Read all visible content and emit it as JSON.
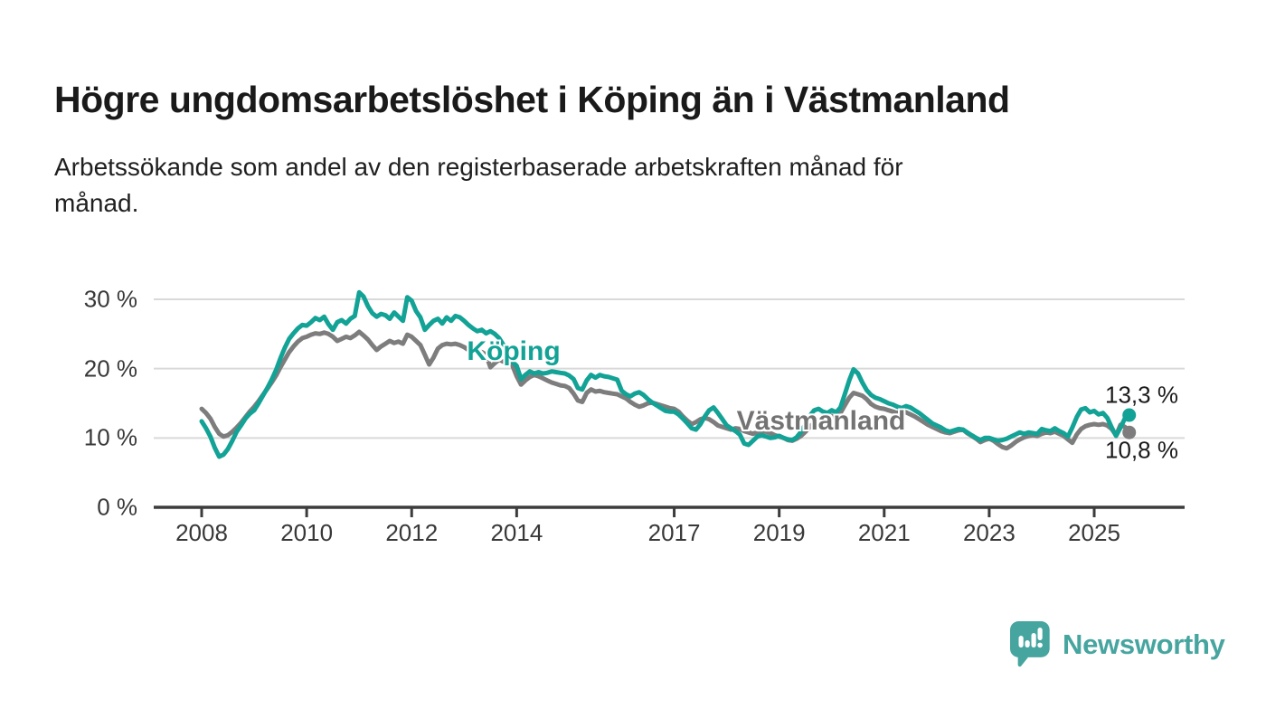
{
  "header": {
    "title": "Högre ungdomsarbetslöshet i Köping än i Västmanland",
    "subtitle_lines": [
      "Arbetssökande som andel av den registerbaserade arbetskraften månad för",
      "månad."
    ]
  },
  "chart_data": {
    "type": "line",
    "unit": "%",
    "frequency": "monthly",
    "period_start": "2008-01",
    "period_end": "2025-09",
    "grid": true,
    "legend": "inline-labels",
    "y_axis": {
      "tick_labels": [
        "0 %",
        "10 %",
        "20 %",
        "30 %"
      ],
      "tick_values": [
        0,
        10,
        20,
        30
      ],
      "min": 0,
      "max": 32.5
    },
    "x_axis": {
      "tick_labels": [
        "2008",
        "2010",
        "2012",
        "2014",
        "2017",
        "2019",
        "2021",
        "2023",
        "2025"
      ],
      "tick_years": [
        2008,
        2010,
        2012,
        2014,
        2017,
        2019,
        2021,
        2023,
        2025
      ]
    },
    "series": [
      {
        "name": "Köping",
        "color": "#12a296",
        "end_label": "13,3 %",
        "last_value": 13.3,
        "values": [
          12.4,
          11.4,
          10.2,
          8.6,
          7.3,
          7.6,
          8.4,
          9.6,
          10.9,
          11.8,
          12.8,
          13.5,
          14.0,
          15.0,
          16.1,
          17.2,
          18.4,
          19.8,
          21.5,
          23.0,
          24.3,
          25.1,
          25.8,
          26.3,
          26.2,
          26.7,
          27.3,
          27.0,
          27.5,
          26.4,
          25.6,
          26.7,
          27.0,
          26.5,
          27.2,
          27.6,
          31.0,
          30.4,
          29.0,
          28.0,
          27.5,
          27.9,
          27.7,
          27.2,
          28.1,
          27.5,
          26.9,
          30.3,
          29.8,
          28.3,
          27.4,
          25.6,
          26.3,
          26.9,
          27.2,
          26.5,
          27.4,
          26.9,
          27.6,
          27.4,
          26.9,
          26.3,
          25.8,
          25.4,
          25.6,
          25.1,
          25.4,
          25.0,
          24.4,
          23.4,
          22.2,
          21.0,
          20.4,
          18.5,
          19.1,
          19.6,
          19.3,
          19.5,
          19.3,
          19.4,
          19.6,
          19.5,
          19.4,
          19.3,
          19.0,
          18.5,
          17.2,
          17.0,
          18.3,
          19.1,
          18.7,
          19.1,
          18.9,
          18.8,
          18.6,
          18.4,
          16.8,
          16.3,
          16.0,
          16.4,
          16.6,
          16.2,
          15.6,
          15.1,
          14.7,
          14.3,
          13.9,
          13.8,
          13.8,
          13.4,
          12.8,
          12.1,
          11.4,
          11.2,
          12.0,
          13.1,
          14.0,
          14.4,
          13.6,
          12.7,
          11.8,
          11.4,
          11.0,
          10.5,
          9.2,
          9.0,
          9.6,
          10.2,
          10.4,
          10.2,
          10.0,
          10.1,
          10.3,
          10.0,
          9.8,
          9.7,
          10.1,
          10.9,
          12.0,
          13.2,
          14.0,
          14.2,
          13.8,
          13.6,
          14.0,
          13.7,
          14.4,
          16.3,
          18.3,
          19.9,
          19.3,
          18.0,
          16.9,
          16.2,
          15.8,
          15.6,
          15.3,
          15.0,
          14.8,
          14.5,
          14.3,
          14.6,
          14.4,
          14.0,
          13.6,
          13.1,
          12.6,
          12.1,
          11.8,
          11.5,
          11.1,
          10.9,
          11.1,
          11.3,
          11.2,
          10.8,
          10.4,
          10.0,
          9.7,
          10.0,
          10.0,
          9.8,
          9.6,
          9.7,
          9.9,
          10.2,
          10.5,
          10.8,
          10.6,
          10.8,
          10.7,
          10.6,
          11.3,
          11.1,
          11.0,
          11.4,
          11.0,
          10.7,
          10.2,
          11.5,
          13.0,
          14.1,
          14.3,
          13.7,
          13.9,
          13.4,
          13.6,
          12.9,
          11.5,
          10.3,
          11.5,
          12.8,
          13.3
        ]
      },
      {
        "name": "Västmanland",
        "color": "#7d7d7d",
        "end_label": "10,8 %",
        "last_value": 10.8,
        "values": [
          14.2,
          13.6,
          12.8,
          11.6,
          10.6,
          10.2,
          10.4,
          10.9,
          11.5,
          12.2,
          13.0,
          13.8,
          14.5,
          15.3,
          16.2,
          17.1,
          18.0,
          19.0,
          20.2,
          21.3,
          22.4,
          23.2,
          23.9,
          24.4,
          24.6,
          24.9,
          25.1,
          25.0,
          25.2,
          25.0,
          24.6,
          24.0,
          24.3,
          24.6,
          24.4,
          24.8,
          25.3,
          24.8,
          24.2,
          23.4,
          22.7,
          23.2,
          23.6,
          24.0,
          23.7,
          23.9,
          23.6,
          24.9,
          24.6,
          24.0,
          23.4,
          22.0,
          20.6,
          21.6,
          22.9,
          23.4,
          23.6,
          23.5,
          23.6,
          23.4,
          23.1,
          22.7,
          22.4,
          22.5,
          22.4,
          22.0,
          20.2,
          20.8,
          21.3,
          21.0,
          20.9,
          20.5,
          18.9,
          17.7,
          18.3,
          18.8,
          19.1,
          18.9,
          18.6,
          18.3,
          18.0,
          17.8,
          17.6,
          17.5,
          17.2,
          16.4,
          15.4,
          15.2,
          16.5,
          17.0,
          16.7,
          16.8,
          16.6,
          16.5,
          16.4,
          16.3,
          16.0,
          15.7,
          15.2,
          14.8,
          14.5,
          14.7,
          15.0,
          15.1,
          14.9,
          14.7,
          14.5,
          14.3,
          14.2,
          13.8,
          13.1,
          12.5,
          12.0,
          12.3,
          12.7,
          12.9,
          12.7,
          12.3,
          11.8,
          11.6,
          11.4,
          11.2,
          11.4,
          11.3,
          11.0,
          10.8,
          10.6,
          10.8,
          11.0,
          10.9,
          10.7,
          10.4,
          10.2,
          10.0,
          9.7,
          9.6,
          9.9,
          10.3,
          10.9,
          11.6,
          12.2,
          12.6,
          12.9,
          13.0,
          13.2,
          13.0,
          13.6,
          14.7,
          15.8,
          16.5,
          16.3,
          16.1,
          15.6,
          14.9,
          14.5,
          14.3,
          14.2,
          14.0,
          13.8,
          13.6,
          13.9,
          13.7,
          13.4,
          13.1,
          12.7,
          12.3,
          11.9,
          11.6,
          11.3,
          11.0,
          10.8,
          10.7,
          10.9,
          11.1,
          11.2,
          10.7,
          10.3,
          9.9,
          9.4,
          9.7,
          9.9,
          9.6,
          9.1,
          8.7,
          8.5,
          8.9,
          9.4,
          9.8,
          10.1,
          10.3,
          10.4,
          10.3,
          10.6,
          10.8,
          10.7,
          10.9,
          10.6,
          10.3,
          9.8,
          9.3,
          10.5,
          11.3,
          11.7,
          11.9,
          12.0,
          11.9,
          12.0,
          11.8,
          11.3,
          10.4,
          11.9,
          11.6,
          10.8
        ]
      }
    ]
  },
  "annotations": {
    "koping_label": "Köping",
    "vastmanland_label": "Västmanland"
  },
  "branding": {
    "logo_text": "Newsworthy",
    "logo_color": "#47a5a0"
  },
  "colors": {
    "background": "#ffffff",
    "gridline": "#d9d9d9",
    "axis": "#3c3c3c",
    "tick_text": "#383838",
    "title_text": "#1a1a1a",
    "koping_line": "#12a296",
    "vastmanland_line": "#7d7d7d",
    "vastmanland_label": "#737373"
  }
}
